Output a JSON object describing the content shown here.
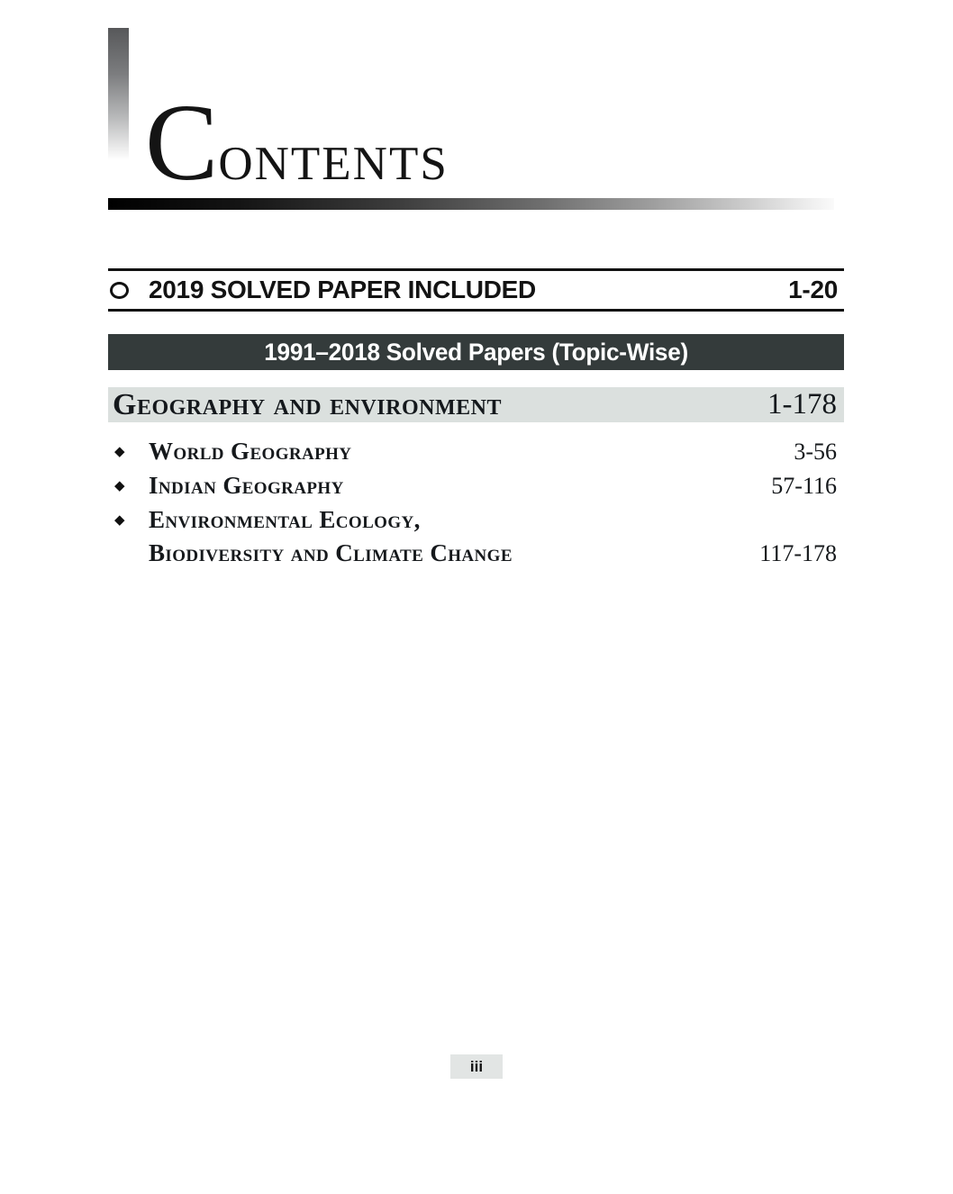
{
  "header": {
    "title_initial": "C",
    "title_rest": "ONTENTS"
  },
  "solved_paper_row": {
    "label": "2019 SOLVED PAPER INCLUDED",
    "pages": "1-20"
  },
  "banner": {
    "text": "1991–2018 Solved Papers (Topic-Wise)"
  },
  "section": {
    "title": "Geography and environment",
    "pages": "1-178"
  },
  "toc": {
    "items": [
      {
        "label": "World Geography",
        "pages": "3-56"
      },
      {
        "label": "Indian Geography",
        "pages": "57-116"
      },
      {
        "label": "Environmental Ecology,",
        "label_line2": "Biodiversity and Climate Change",
        "pages": "117-178"
      }
    ]
  },
  "icons": {
    "item_bullet": "◆"
  },
  "footer": {
    "page_number": "iii"
  },
  "colors": {
    "banner_bg": "#343b3b",
    "section_band_bg": "#dbe0de",
    "page_number_bg": "#e2e5e4",
    "rule_color": "#111111"
  }
}
